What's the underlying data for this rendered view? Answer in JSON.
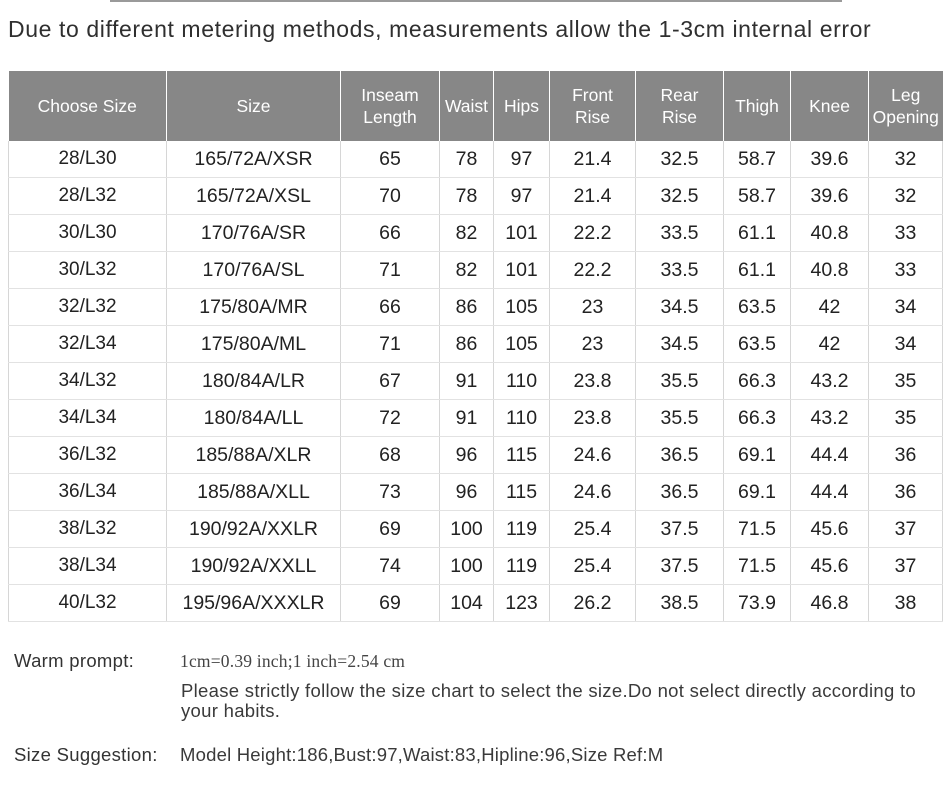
{
  "disclaimer": "Due to different metering methods, measurements allow the 1-3cm internal error",
  "table": {
    "headers": [
      "Choose Size",
      "Size",
      "Inseam\nLength",
      "Waist",
      "Hips",
      "Front\nRise",
      "Rear\nRise",
      "Thigh",
      "Knee",
      "Leg\nOpening"
    ],
    "rows": [
      [
        "28/L30",
        "165/72A/XSR",
        "65",
        "78",
        "97",
        "21.4",
        "32.5",
        "58.7",
        "39.6",
        "32"
      ],
      [
        "28/L32",
        "165/72A/XSL",
        "70",
        "78",
        "97",
        "21.4",
        "32.5",
        "58.7",
        "39.6",
        "32"
      ],
      [
        "30/L30",
        "170/76A/SR",
        "66",
        "82",
        "101",
        "22.2",
        "33.5",
        "61.1",
        "40.8",
        "33"
      ],
      [
        "30/L32",
        "170/76A/SL",
        "71",
        "82",
        "101",
        "22.2",
        "33.5",
        "61.1",
        "40.8",
        "33"
      ],
      [
        "32/L32",
        "175/80A/MR",
        "66",
        "86",
        "105",
        "23",
        "34.5",
        "63.5",
        "42",
        "34"
      ],
      [
        "32/L34",
        "175/80A/ML",
        "71",
        "86",
        "105",
        "23",
        "34.5",
        "63.5",
        "42",
        "34"
      ],
      [
        "34/L32",
        "180/84A/LR",
        "67",
        "91",
        "110",
        "23.8",
        "35.5",
        "66.3",
        "43.2",
        "35"
      ],
      [
        "34/L34",
        "180/84A/LL",
        "72",
        "91",
        "110",
        "23.8",
        "35.5",
        "66.3",
        "43.2",
        "35"
      ],
      [
        "36/L32",
        "185/88A/XLR",
        "68",
        "96",
        "115",
        "24.6",
        "36.5",
        "69.1",
        "44.4",
        "36"
      ],
      [
        "36/L34",
        "185/88A/XLL",
        "73",
        "96",
        "115",
        "24.6",
        "36.5",
        "69.1",
        "44.4",
        "36"
      ],
      [
        "38/L32",
        "190/92A/XXLR",
        "69",
        "100",
        "119",
        "25.4",
        "37.5",
        "71.5",
        "45.6",
        "37"
      ],
      [
        "38/L34",
        "190/92A/XXLL",
        "74",
        "100",
        "119",
        "25.4",
        "37.5",
        "71.5",
        "45.6",
        "37"
      ],
      [
        "40/L32",
        "195/96A/XXXLR",
        "69",
        "104",
        "123",
        "26.2",
        "38.5",
        "73.9",
        "46.8",
        "38"
      ]
    ]
  },
  "notes": {
    "warm_label": "Warm prompt:",
    "conversion": "1cm=0.39 inch;1 inch=2.54 cm",
    "instruction": "Please strictly follow the size chart  to select the size.Do not select directly according to your habits.",
    "suggestion_label": "Size Suggestion:",
    "suggestion_text": "Model Height:186,Bust:97,Waist:83,Hipline:96,Size Ref:M"
  },
  "colors": {
    "header_background": "#878787",
    "header_text": "#ffffff",
    "grid_line": "#d6d6d6"
  }
}
